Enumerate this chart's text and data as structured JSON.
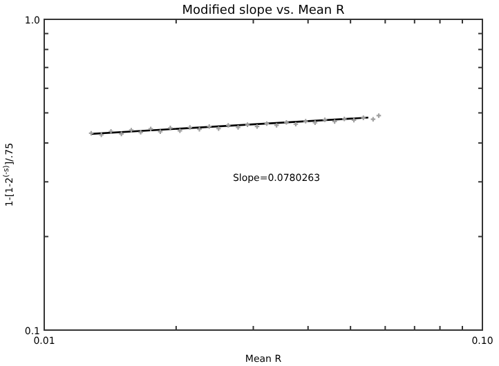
{
  "chart_data": {
    "type": "scatter",
    "title": "Modified slope vs. Mean R",
    "xlabel": "Mean R",
    "ylabel": "1-[1-2$^{(-s)}$]/.75",
    "log": "xy",
    "grid": false,
    "marker": "cross",
    "xlim": [
      0.01,
      0.1
    ],
    "ylim": [
      0.1,
      1.0
    ],
    "xticks": [
      {
        "value": 0.01,
        "label": "0.01"
      },
      {
        "value": 0.02,
        "label": null
      },
      {
        "value": 0.03,
        "label": null
      },
      {
        "value": 0.04,
        "label": null
      },
      {
        "value": 0.05,
        "label": null
      },
      {
        "value": 0.06,
        "label": null
      },
      {
        "value": 0.07,
        "label": null
      },
      {
        "value": 0.08,
        "label": null
      },
      {
        "value": 0.09,
        "label": null
      },
      {
        "value": 0.1,
        "label": "0.10"
      }
    ],
    "yticks": [
      {
        "value": 0.1,
        "label": "0.1"
      },
      {
        "value": 0.2,
        "label": null
      },
      {
        "value": 0.3,
        "label": null
      },
      {
        "value": 0.4,
        "label": null
      },
      {
        "value": 0.5,
        "label": null
      },
      {
        "value": 0.6,
        "label": null
      },
      {
        "value": 0.7,
        "label": null
      },
      {
        "value": 0.8,
        "label": null
      },
      {
        "value": 0.9,
        "label": null
      },
      {
        "value": 1.0,
        "label": "1.0"
      }
    ],
    "annotations": [
      "Slope=0.0780263"
    ],
    "series": [
      {
        "type": "line",
        "color": "#000000",
        "marker": "none",
        "x": [
          0.0128,
          0.0549
        ],
        "values": [
          0.428,
          0.483
        ]
      },
      {
        "color": "#a0a0a0",
        "x": [
          0.0128,
          0.0135,
          0.0142,
          0.015,
          0.0158,
          0.0166,
          0.0175,
          0.0184,
          0.0194,
          0.0204,
          0.0215,
          0.0226,
          0.0238,
          0.025,
          0.0263,
          0.0277,
          0.0291,
          0.0306,
          0.0322,
          0.0339,
          0.0357,
          0.0375,
          0.0395,
          0.0415,
          0.0437,
          0.046,
          0.0484,
          0.0509,
          0.0535,
          0.0563,
          0.058
        ],
        "values": [
          0.43,
          0.425,
          0.436,
          0.428,
          0.44,
          0.433,
          0.444,
          0.435,
          0.447,
          0.438,
          0.449,
          0.443,
          0.452,
          0.445,
          0.456,
          0.449,
          0.458,
          0.452,
          0.462,
          0.456,
          0.466,
          0.46,
          0.47,
          0.465,
          0.475,
          0.469,
          0.478,
          0.474,
          0.482,
          0.477,
          0.49
        ]
      }
    ]
  }
}
